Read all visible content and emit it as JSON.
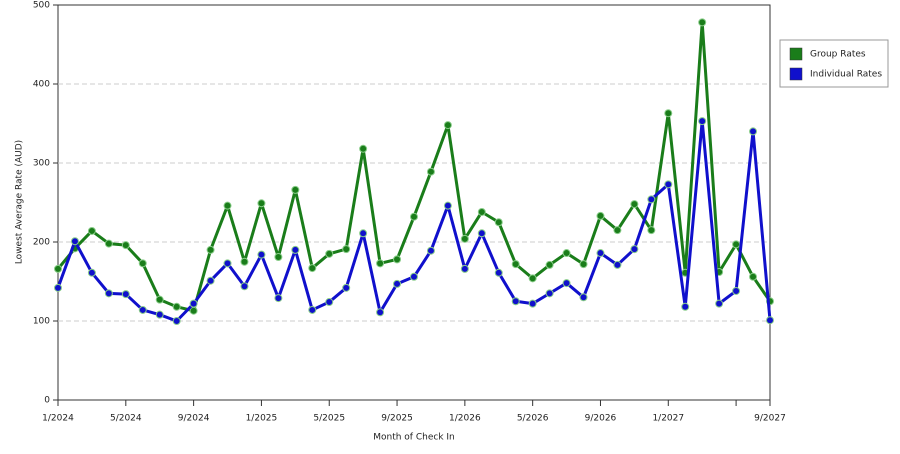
{
  "chart_data": {
    "type": "line",
    "y_label": "Lowest Average Rate (AUD)",
    "x_label": "Month of Check In",
    "categories": [
      "1/2024",
      null,
      null,
      null,
      "5/2024",
      null,
      null,
      null,
      "9/2024",
      null,
      null,
      null,
      "1/2025",
      null,
      null,
      null,
      "5/2025",
      null,
      null,
      null,
      "9/2025",
      null,
      null,
      null,
      "1/2026",
      null,
      null,
      null,
      "5/2026",
      null,
      null,
      null,
      "9/2026",
      null,
      null,
      null,
      "1/2027",
      null,
      null,
      null,
      null,
      null,
      "9/2027"
    ],
    "series": [
      {
        "name": "Group Rates",
        "color": "#1a7d1a",
        "values": [
          166,
          192,
          214,
          198,
          196,
          173,
          127,
          118,
          113,
          190,
          246,
          175,
          249,
          181,
          266,
          167,
          185,
          191,
          318,
          173,
          178,
          232,
          289,
          348,
          204,
          238,
          225,
          172,
          154,
          171,
          186,
          172,
          233,
          215,
          248,
          215,
          363,
          161,
          478,
          162,
          197,
          156,
          125
        ]
      },
      {
        "name": "Individual Rates",
        "color": "#1010cc",
        "values": [
          142,
          201,
          161,
          135,
          134,
          114,
          108,
          100,
          122,
          151,
          173,
          144,
          184,
          129,
          190,
          114,
          124,
          142,
          211,
          111,
          147,
          156,
          189,
          246,
          166,
          211,
          161,
          125,
          122,
          135,
          148,
          130,
          186,
          171,
          191,
          254,
          273,
          118,
          353,
          122,
          138,
          340,
          101
        ]
      }
    ],
    "ylim": [
      0,
      500
    ],
    "yticks": [
      0,
      100,
      200,
      300,
      400,
      500
    ],
    "grid": true,
    "legend": "right"
  }
}
